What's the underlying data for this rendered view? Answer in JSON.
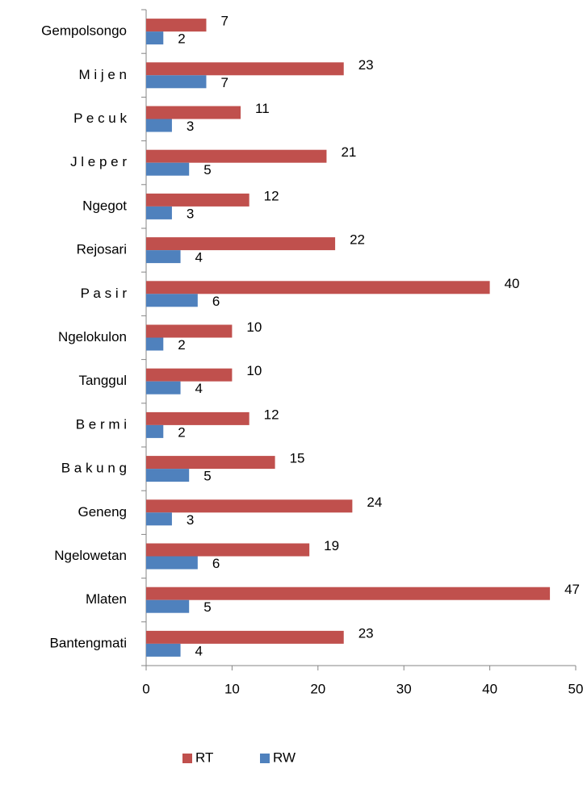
{
  "chart_data": {
    "type": "hbar",
    "categories": [
      "Gempolsongo",
      "M i j e n",
      "P e c u k",
      "J l e p e r",
      "Ngegot",
      "Rejosari",
      "P a s i r",
      "Ngelokulon",
      "Tanggul",
      "B e r m i",
      "B a k u n g",
      "Geneng",
      "Ngelowetan",
      "Mlaten",
      "Bantengmati"
    ],
    "series": [
      {
        "name": "RT",
        "color": "#c0504d",
        "values": [
          7,
          23,
          11,
          21,
          12,
          22,
          40,
          10,
          10,
          12,
          15,
          24,
          19,
          47,
          23
        ]
      },
      {
        "name": "RW",
        "color": "#4f81bd",
        "values": [
          2,
          7,
          3,
          5,
          3,
          4,
          6,
          2,
          4,
          2,
          5,
          3,
          6,
          5,
          4
        ]
      }
    ],
    "xlim": [
      0,
      50
    ],
    "xticks": [
      0,
      10,
      20,
      30,
      40,
      50
    ],
    "grid": false,
    "legend": "bottom"
  }
}
